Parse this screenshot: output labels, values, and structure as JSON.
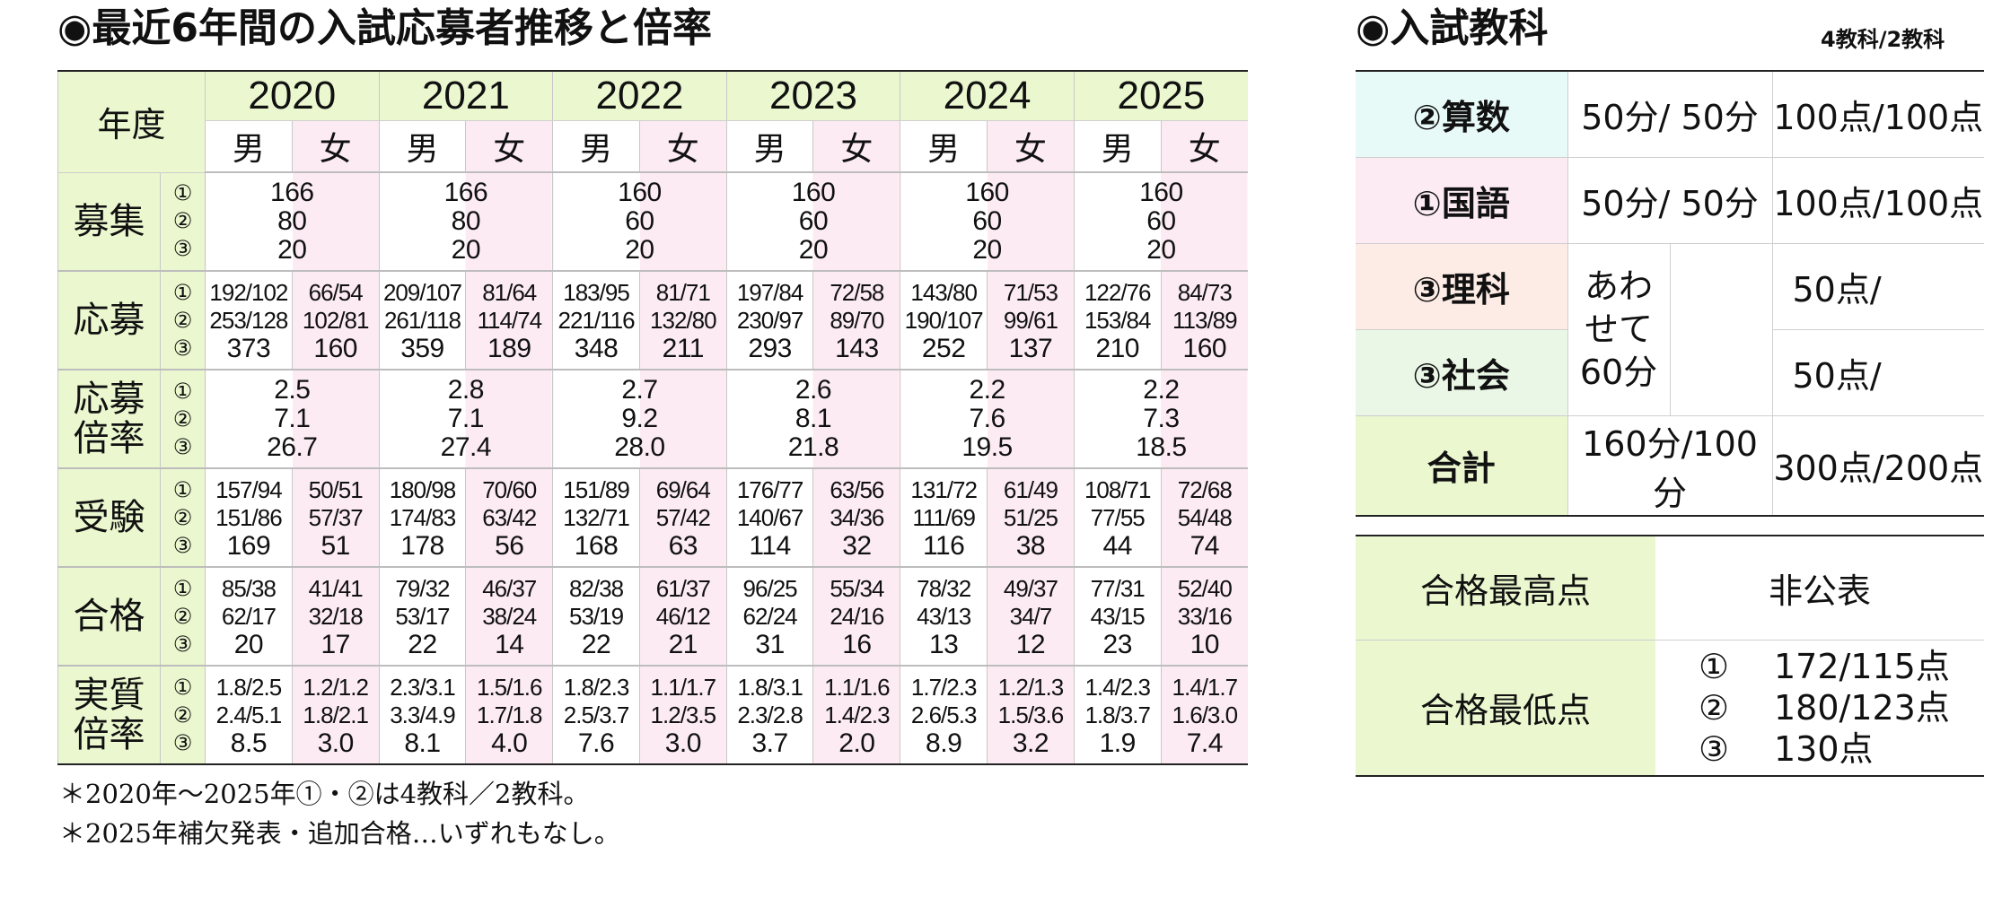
{
  "left_title": "◉最近6年間の入試応募者推移と倍率",
  "right_title": "◉入試教科",
  "right_subtitle": "4教科/2教科",
  "stats": {
    "header_label": "年度",
    "years": [
      "2020",
      "2021",
      "2022",
      "2023",
      "2024",
      "2025"
    ],
    "male": "男",
    "female": "女",
    "rows": [
      {
        "label": "募集",
        "nums": [
          "①",
          "②",
          "③"
        ],
        "merged": true,
        "values": [
          [
            "166",
            "80",
            "20"
          ],
          [
            "166",
            "80",
            "20"
          ],
          [
            "160",
            "60",
            "20"
          ],
          [
            "160",
            "60",
            "20"
          ],
          [
            "160",
            "60",
            "20"
          ],
          [
            "160",
            "60",
            "20"
          ]
        ]
      },
      {
        "label": "応募",
        "nums": [
          "①",
          "②",
          "③"
        ],
        "merged": false,
        "values": [
          [
            [
              "192/102",
              "253/128",
              "373"
            ],
            [
              "66/54",
              "102/81",
              "160"
            ]
          ],
          [
            [
              "209/107",
              "261/118",
              "359"
            ],
            [
              "81/64",
              "114/74",
              "189"
            ]
          ],
          [
            [
              "183/95",
              "221/116",
              "348"
            ],
            [
              "81/71",
              "132/80",
              "211"
            ]
          ],
          [
            [
              "197/84",
              "230/97",
              "293"
            ],
            [
              "72/58",
              "89/70",
              "143"
            ]
          ],
          [
            [
              "143/80",
              "190/107",
              "252"
            ],
            [
              "71/53",
              "99/61",
              "137"
            ]
          ],
          [
            [
              "122/76",
              "153/84",
              "210"
            ],
            [
              "84/73",
              "113/89",
              "160"
            ]
          ]
        ]
      },
      {
        "label": "応募倍率",
        "nums": [
          "①",
          "②",
          "③"
        ],
        "merged": true,
        "values": [
          [
            "2.5",
            "7.1",
            "26.7"
          ],
          [
            "2.8",
            "7.1",
            "27.4"
          ],
          [
            "2.7",
            "9.2",
            "28.0"
          ],
          [
            "2.6",
            "8.1",
            "21.8"
          ],
          [
            "2.2",
            "7.6",
            "19.5"
          ],
          [
            "2.2",
            "7.3",
            "18.5"
          ]
        ]
      },
      {
        "label": "受験",
        "nums": [
          "①",
          "②",
          "③"
        ],
        "merged": false,
        "values": [
          [
            [
              "157/94",
              "151/86",
              "169"
            ],
            [
              "50/51",
              "57/37",
              "51"
            ]
          ],
          [
            [
              "180/98",
              "174/83",
              "178"
            ],
            [
              "70/60",
              "63/42",
              "56"
            ]
          ],
          [
            [
              "151/89",
              "132/71",
              "168"
            ],
            [
              "69/64",
              "57/42",
              "63"
            ]
          ],
          [
            [
              "176/77",
              "140/67",
              "114"
            ],
            [
              "63/56",
              "34/36",
              "32"
            ]
          ],
          [
            [
              "131/72",
              "111/69",
              "116"
            ],
            [
              "61/49",
              "51/25",
              "38"
            ]
          ],
          [
            [
              "108/71",
              "77/55",
              "44"
            ],
            [
              "72/68",
              "54/48",
              "74"
            ]
          ]
        ]
      },
      {
        "label": "合格",
        "nums": [
          "①",
          "②",
          "③"
        ],
        "merged": false,
        "values": [
          [
            [
              "85/38",
              "62/17",
              "20"
            ],
            [
              "41/41",
              "32/18",
              "17"
            ]
          ],
          [
            [
              "79/32",
              "53/17",
              "22"
            ],
            [
              "46/37",
              "38/24",
              "14"
            ]
          ],
          [
            [
              "82/38",
              "53/19",
              "22"
            ],
            [
              "61/37",
              "46/12",
              "21"
            ]
          ],
          [
            [
              "96/25",
              "62/24",
              "31"
            ],
            [
              "55/34",
              "24/16",
              "16"
            ]
          ],
          [
            [
              "78/32",
              "43/13",
              "13"
            ],
            [
              "49/37",
              "34/7",
              "12"
            ]
          ],
          [
            [
              "77/31",
              "43/15",
              "23"
            ],
            [
              "52/40",
              "33/16",
              "10"
            ]
          ]
        ]
      },
      {
        "label": "実質倍率",
        "nums": [
          "①",
          "②",
          "③"
        ],
        "merged": false,
        "values": [
          [
            [
              "1.8/2.5",
              "2.4/5.1",
              "8.5"
            ],
            [
              "1.2/1.2",
              "1.8/2.1",
              "3.0"
            ]
          ],
          [
            [
              "2.3/3.1",
              "3.3/4.9",
              "8.1"
            ],
            [
              "1.5/1.6",
              "1.7/1.8",
              "4.0"
            ]
          ],
          [
            [
              "1.8/2.3",
              "2.5/3.7",
              "7.6"
            ],
            [
              "1.1/1.7",
              "1.2/3.5",
              "3.0"
            ]
          ],
          [
            [
              "1.8/3.1",
              "2.3/2.8",
              "3.7"
            ],
            [
              "1.1/1.6",
              "1.4/2.3",
              "2.0"
            ]
          ],
          [
            [
              "1.7/2.3",
              "2.6/5.3",
              "8.9"
            ],
            [
              "1.2/1.3",
              "1.5/3.6",
              "3.2"
            ]
          ],
          [
            [
              "1.4/2.3",
              "1.8/3.7",
              "1.9"
            ],
            [
              "1.4/1.7",
              "1.6/3.0",
              "7.4"
            ]
          ]
        ]
      }
    ]
  },
  "notes": [
    "＊2020年～2025年①・②は4教科／2教科。",
    "＊2025年補欠発表・追加合格…いずれもなし。"
  ],
  "subjects": {
    "math": {
      "name": "②算数",
      "time": "50分/ 50分",
      "points": "100点/100点",
      "color": "#e8faf8"
    },
    "japanese": {
      "name": "①国語",
      "time": "50分/ 50分",
      "points": "100点/100点",
      "color": "#fcebf3"
    },
    "science": {
      "name": "③理科",
      "points": "50点/",
      "color": "#fdece6"
    },
    "social": {
      "name": "③社会",
      "points": "50点/",
      "color": "#eaf7e6"
    },
    "combined_time": [
      "あわ",
      "せて",
      "60分"
    ],
    "total": {
      "name": "合計",
      "time": "160分/100分",
      "points": "300点/200点",
      "color": "#eaf7cf"
    }
  },
  "scores": {
    "max_label": "合格最高点",
    "max_value": "非公表",
    "min_label": "合格最低点",
    "min_values": [
      [
        "①",
        "172/115点"
      ],
      [
        "②",
        "180/123点"
      ],
      [
        "③",
        "130点"
      ]
    ],
    "label_color": "#eaf7cf"
  }
}
